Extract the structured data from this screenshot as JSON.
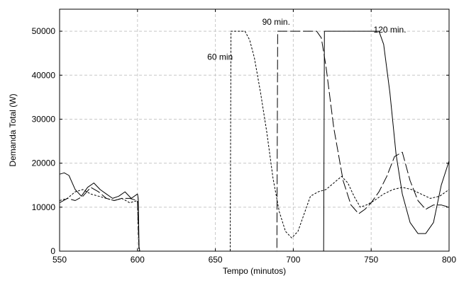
{
  "chart_data": {
    "type": "line",
    "title": "",
    "xlabel": "Tempo (minutos)",
    "ylabel": "Demanda Total (W)",
    "xlim": [
      550,
      800
    ],
    "ylim": [
      0,
      55000
    ],
    "xticks": [
      550,
      600,
      650,
      700,
      750,
      800
    ],
    "yticks": [
      0,
      10000,
      20000,
      30000,
      40000,
      50000
    ],
    "grid": true,
    "annotations": [
      {
        "text": "60 min",
        "x": 653,
        "y": 43500
      },
      {
        "text": "90 min.",
        "x": 689,
        "y": 51500
      },
      {
        "text": "120 min.",
        "x": 762,
        "y": 49700
      }
    ],
    "series": [
      {
        "dash": "solid",
        "x": [
          550,
          553,
          556,
          560,
          564,
          568,
          572,
          576,
          580,
          584,
          588,
          592,
          596,
          600,
          600.5,
          601,
          601.5,
          719.5,
          720,
          721,
          726,
          732,
          738,
          745,
          750,
          755,
          758,
          762,
          766,
          770,
          775,
          780,
          785,
          790,
          795,
          800
        ],
        "y": [
          17500,
          17800,
          17200,
          14000,
          12500,
          14500,
          15500,
          14000,
          13000,
          12000,
          12500,
          13500,
          12000,
          13000,
          12000,
          1000,
          0,
          0,
          50000,
          50000,
          50000,
          50000,
          50000,
          50000,
          50000,
          50000,
          47000,
          36000,
          22000,
          13000,
          6500,
          4000,
          4000,
          6500,
          15000,
          20500
        ]
      },
      {
        "dash": "longdash",
        "x": [
          550,
          555,
          560,
          565,
          570,
          575,
          580,
          585,
          590,
          595,
          600,
          601,
          689.5,
          690,
          692,
          700,
          710,
          715,
          718,
          721,
          726,
          732,
          737,
          742,
          746,
          750,
          755,
          760,
          765,
          770,
          775,
          780,
          785,
          790,
          795,
          800
        ],
        "y": [
          11000,
          12000,
          11500,
          12500,
          14500,
          13500,
          12000,
          11500,
          12000,
          12000,
          11500,
          0,
          0,
          50000,
          50000,
          50000,
          50000,
          50000,
          48500,
          42000,
          28000,
          16000,
          10500,
          8500,
          9500,
          11000,
          13500,
          17000,
          21500,
          22500,
          16000,
          11500,
          9500,
          10500,
          10500,
          10000
        ]
      },
      {
        "dash": "shortdash",
        "x": [
          550,
          555,
          560,
          565,
          570,
          575,
          580,
          585,
          590,
          595,
          600,
          601,
          659.5,
          660,
          665,
          669,
          672,
          675,
          679,
          683,
          687,
          691,
          695,
          699,
          703,
          707,
          711,
          716,
          721,
          726,
          731,
          735,
          739,
          743,
          747,
          752,
          758,
          764,
          770,
          776,
          782,
          788,
          794,
          800
        ],
        "y": [
          11500,
          12000,
          13500,
          14000,
          13000,
          12500,
          12000,
          11500,
          12000,
          11000,
          11500,
          0,
          0,
          50000,
          50000,
          50000,
          48000,
          44000,
          36000,
          27000,
          16500,
          9000,
          4500,
          3000,
          4500,
          8500,
          12500,
          13500,
          14000,
          15500,
          17000,
          15500,
          12500,
          10000,
          10500,
          11500,
          13000,
          14000,
          14500,
          14000,
          13000,
          12000,
          12500,
          14000
        ]
      }
    ]
  }
}
